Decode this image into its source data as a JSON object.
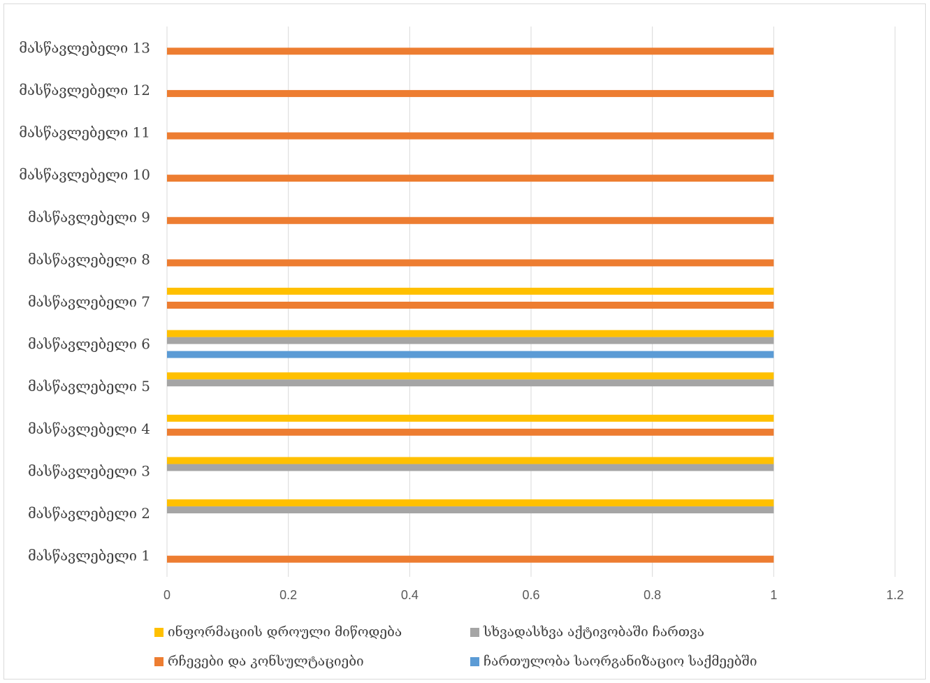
{
  "chart_data": {
    "type": "bar",
    "orientation": "horizontal",
    "categories": [
      "მასწავლებელი 1",
      "მასწავლებელი 2",
      "მასწავლებელი 3",
      "მასწავლებელი 4",
      "მასწავლებელი 5",
      "მასწავლებელი 6",
      "მასწავლებელი 7",
      "მასწავლებელი 8",
      "მასწავლებელი 9",
      "მასწავლებელი 10",
      "მასწავლებელი 11",
      "მასწავლებელი 12",
      "მასწავლებელი 13"
    ],
    "series": [
      {
        "name": "ჩართულობა საორგანიზაციო საქმეებში",
        "color": "#5b9bd5",
        "values": [
          0,
          0,
          0,
          0,
          0,
          1,
          0,
          0,
          0,
          0,
          0,
          0,
          0
        ]
      },
      {
        "name": "რჩევები და კონსულტაციები",
        "color": "#ed7d31",
        "values": [
          1,
          0,
          0,
          1,
          0,
          0,
          1,
          1,
          1,
          1,
          1,
          1,
          1
        ]
      },
      {
        "name": "სხვადასხვა აქტივობაში ჩართვა",
        "color": "#a5a5a5",
        "values": [
          0,
          1,
          1,
          0,
          1,
          1,
          0,
          0,
          0,
          0,
          0,
          0,
          0
        ]
      },
      {
        "name": "ინფორმაციის დროული მიწოდება",
        "color": "#ffc000",
        "values": [
          0,
          1,
          1,
          1,
          1,
          1,
          1,
          0,
          0,
          0,
          0,
          0,
          0
        ]
      }
    ],
    "xticks": [
      "0",
      "0.2",
      "0.4",
      "0.6",
      "0.8",
      "1",
      "1.2"
    ],
    "xlim": [
      0,
      1.2
    ],
    "grid": true,
    "title": "",
    "xlabel": "",
    "ylabel": "",
    "legend_position": "bottom",
    "legend_order": [
      3,
      2,
      1,
      0
    ]
  }
}
